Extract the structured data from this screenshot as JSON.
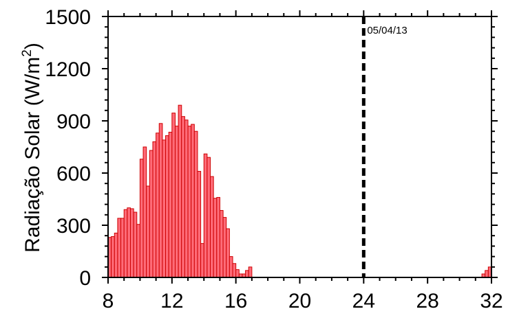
{
  "chart_data": {
    "type": "bar",
    "title": "",
    "xlabel": "",
    "ylabel_main": "Radiação Solar (W/m",
    "ylabel_sup": "2",
    "ylabel_close": ")",
    "xlim": [
      8,
      32
    ],
    "ylim": [
      0,
      1500
    ],
    "xticks": [
      8,
      12,
      16,
      20,
      24,
      28,
      32
    ],
    "xtick_labels": [
      "8",
      "12",
      "16",
      "20",
      "24",
      "28",
      "32"
    ],
    "yticks": [
      0,
      300,
      600,
      900,
      1200,
      1500
    ],
    "ytick_labels": [
      "0",
      "300",
      "600",
      "900",
      "1200",
      "1500"
    ],
    "bar_width_hours": 0.2,
    "x": [
      8.1,
      8.3,
      8.5,
      8.7,
      8.9,
      9.1,
      9.3,
      9.5,
      9.7,
      9.9,
      10.1,
      10.3,
      10.5,
      10.7,
      10.9,
      11.1,
      11.3,
      11.5,
      11.7,
      11.9,
      12.1,
      12.3,
      12.5,
      12.7,
      12.9,
      13.1,
      13.3,
      13.5,
      13.7,
      13.9,
      14.1,
      14.3,
      14.5,
      14.7,
      14.9,
      15.1,
      15.3,
      15.5,
      15.7,
      15.9,
      16.1,
      16.3,
      16.5,
      16.7,
      16.9,
      17.1,
      17.3,
      17.5,
      17.7,
      17.9,
      18.1,
      18.3,
      31.5,
      31.7,
      31.9
    ],
    "values": [
      230,
      235,
      255,
      340,
      340,
      390,
      400,
      395,
      375,
      305,
      680,
      750,
      525,
      730,
      780,
      830,
      885,
      790,
      815,
      835,
      945,
      870,
      990,
      925,
      905,
      870,
      880,
      840,
      610,
      195,
      710,
      690,
      580,
      455,
      460,
      385,
      345,
      280,
      120,
      80,
      45,
      20,
      20,
      40,
      60,
      0,
      0,
      0,
      0,
      0,
      0,
      0,
      20,
      40,
      60
    ],
    "grid": false,
    "legend": "none",
    "colors": {
      "bar_fill": "#ff6b78",
      "bar_stroke": "#cc0000",
      "vline": "#000000"
    },
    "annotations": [
      {
        "type": "vline",
        "x": 24,
        "style": "dashed",
        "label": "05/04/13"
      }
    ]
  }
}
